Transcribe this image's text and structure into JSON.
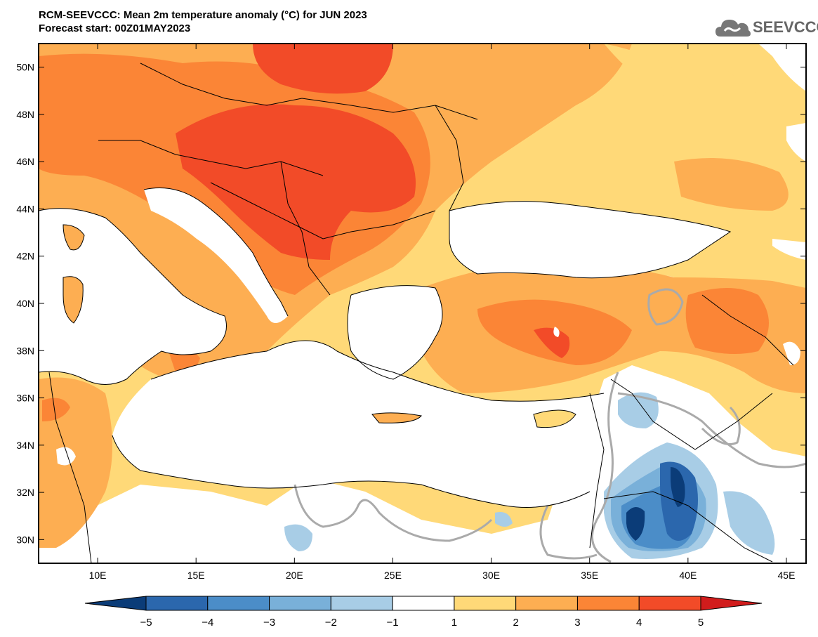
{
  "title": {
    "line1": "RCM-SEEVCCC: Mean 2m temperature anomaly (°C) for JUN 2023",
    "line2": "Forecast start: 00Z01MAY2023"
  },
  "logo": {
    "text": "SEEVCCC",
    "icon": "cloud-icon"
  },
  "map": {
    "lat_range": [
      29,
      51
    ],
    "lon_range": [
      7,
      46
    ],
    "lat_ticks": [
      "50N",
      "48N",
      "46N",
      "44N",
      "42N",
      "40N",
      "38N",
      "36N",
      "34N",
      "32N",
      "30N"
    ],
    "lon_ticks": [
      "10E",
      "15E",
      "20E",
      "25E",
      "30E",
      "35E",
      "40E",
      "45E"
    ]
  },
  "colorbar": {
    "ticks": [
      "−5",
      "−4",
      "−3",
      "−2",
      "−1",
      "1",
      "2",
      "3",
      "4",
      "5"
    ],
    "colors": [
      "#0b3c78",
      "#2b67ad",
      "#4b8dc8",
      "#79b0d9",
      "#a8cde6",
      "#ffffff",
      "#ffd978",
      "#fdae52",
      "#fb8536",
      "#f24b28",
      "#d11c1c"
    ]
  }
}
